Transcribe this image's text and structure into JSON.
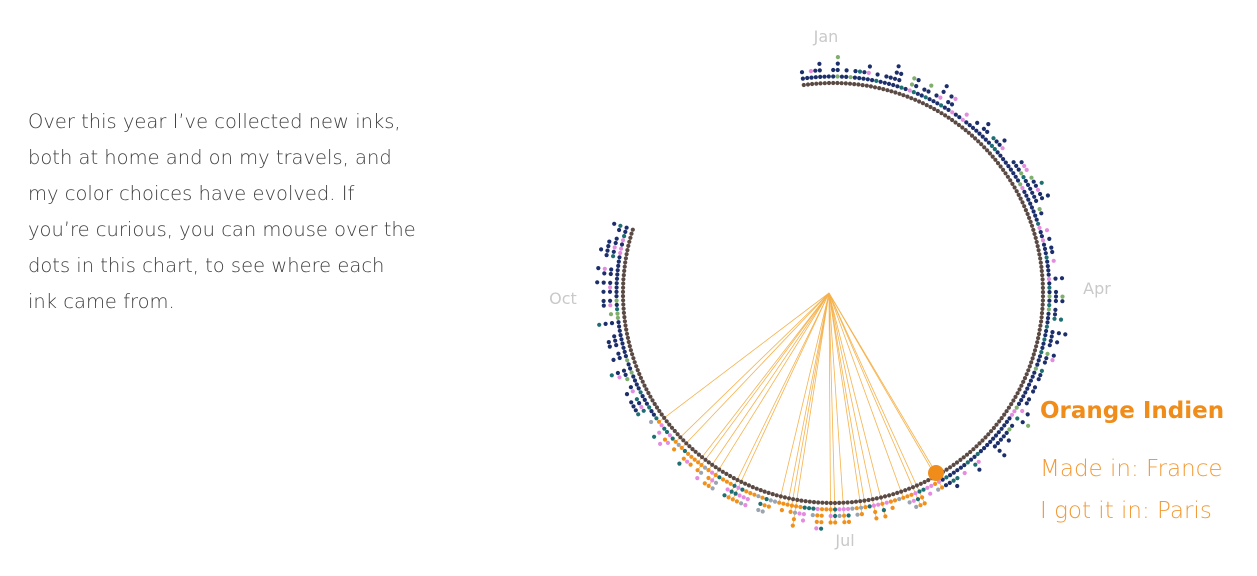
{
  "intro": {
    "text": "Over this year I’ve collected new inks, both at home and on my travels, and my color choices have evolved. If you’re curious, you can mouse over the dots in this chart, to see where each ink came from."
  },
  "chart_data": {
    "type": "radial-dot-timeline",
    "month_labels": [
      "Jan",
      "Apr",
      "Jul",
      "Oct"
    ],
    "selected_ink": {
      "name": "Orange Indien",
      "made_in_label": "Made in:",
      "made_in": "France",
      "got_in_label": "I got it in:",
      "got_in": "Paris",
      "color": "#f08c1a"
    },
    "colors": {
      "ring_inner": "#5b4a44",
      "ink_blue": "#1d2f6b",
      "ink_teal": "#1d6f72",
      "ink_pink": "#e38ce0",
      "ink_green": "#7fae6e",
      "ink_orange": "#f0911c",
      "ink_gray": "#9aa5b1",
      "connector": "#f5b24d"
    }
  }
}
